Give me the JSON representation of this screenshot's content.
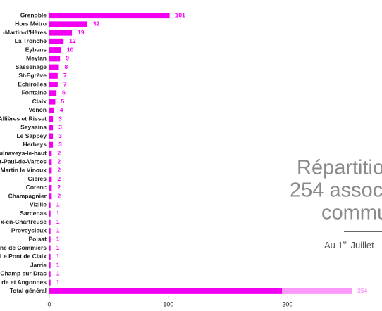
{
  "chart_data": {
    "type": "bar",
    "orientation": "horizontal",
    "categories": [
      "Grenoble",
      "Hors Métro",
      "-Martin-d'Hères",
      "La Tronche",
      "Eybens",
      "Meylan",
      "Sassenage",
      "St-Egrève",
      "Echirolles",
      "Fontaine",
      "Claix",
      "Venon",
      "Allières et Risset",
      "Seyssins",
      "Le Sappey",
      "Herbeys",
      "ulnaveys-le-haut",
      "t-Paul-de-Varces",
      "Martin le Vinoux",
      "Gières",
      "Corenc",
      "Champagnier",
      "Vizille",
      "Sarcenas",
      "x-en-Chartreuse",
      "Proveysieux",
      "Poisat",
      "ne de Commiers",
      "Le Pont de Claix",
      "Jarrie",
      "Champ sur Drac",
      "rie et Angonnes",
      "Total général"
    ],
    "values": [
      101,
      32,
      19,
      12,
      10,
      9,
      8,
      7,
      7,
      6,
      5,
      4,
      3,
      3,
      3,
      3,
      2,
      2,
      2,
      2,
      2,
      2,
      1,
      1,
      1,
      1,
      1,
      1,
      1,
      1,
      1,
      1,
      254
    ],
    "color": "#f200f2",
    "xlim": [
      0,
      280
    ],
    "xticks": [
      0,
      100,
      200
    ],
    "slide_text": {
      "title_lines": [
        "Répartitio",
        "254 assoc",
        "commu"
      ],
      "date_prefix": "Au 1",
      "date_sup": "er",
      "date_suffix": " Juillet"
    }
  }
}
